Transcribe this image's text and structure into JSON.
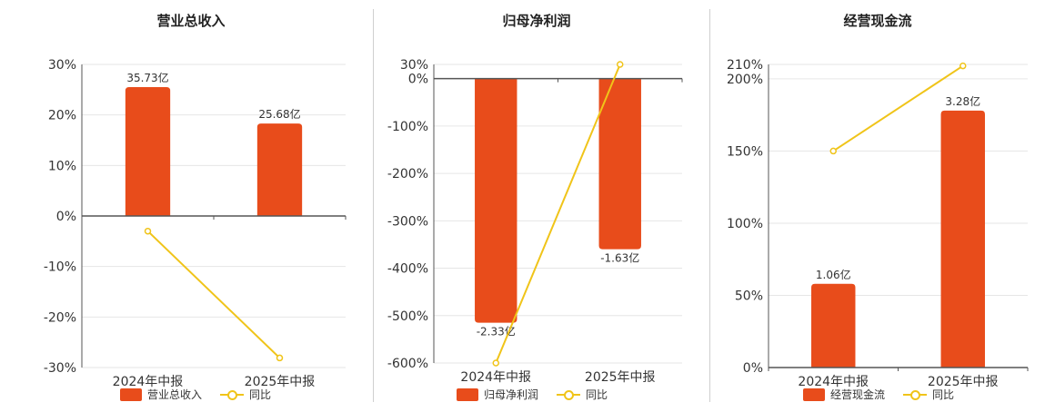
{
  "colors": {
    "bar": "#e84c1b",
    "line": "#f0c419",
    "grid": "#e6e6e6",
    "axis": "#555555"
  },
  "chart_data": [
    {
      "type": "bar",
      "title": "营业总收入",
      "categories": [
        "2024年中报",
        "2025年中报"
      ],
      "bar_series": {
        "name": "营业总收入",
        "values": [
          25.5,
          18.3
        ],
        "labels": [
          "35.73亿",
          "25.68亿"
        ]
      },
      "line_series": {
        "name": "同比",
        "values": [
          -3,
          -28.1
        ]
      },
      "ylim": [
        -30,
        30
      ],
      "yticks": [
        30,
        20,
        10,
        0,
        -10,
        -20,
        -30
      ],
      "ytick_labels": [
        "30%",
        "20%",
        "10%",
        "0%",
        "-10%",
        "-20%",
        "-30%"
      ],
      "grid": true,
      "legend": "bottom"
    },
    {
      "type": "bar",
      "title": "归母净利润",
      "categories": [
        "2024年中报",
        "2025年中报"
      ],
      "bar_series": {
        "name": "归母净利润",
        "values": [
          -515,
          -360
        ],
        "labels": [
          "-2.33亿",
          "-1.63亿"
        ]
      },
      "line_series": {
        "name": "同比",
        "values": [
          -600,
          30
        ]
      },
      "ylim": [
        -600,
        30
      ],
      "yticks": [
        30,
        0,
        -100,
        -200,
        -300,
        -400,
        -500,
        -600
      ],
      "ytick_labels": [
        "30%",
        "0%",
        "-100%",
        "-200%",
        "-300%",
        "-400%",
        "-500%",
        "-600%"
      ],
      "grid": true,
      "legend": "bottom"
    },
    {
      "type": "bar",
      "title": "经营现金流",
      "categories": [
        "2024年中报",
        "2025年中报"
      ],
      "bar_series": {
        "name": "经营现金流",
        "values": [
          58,
          178
        ],
        "labels": [
          "1.06亿",
          "3.28亿"
        ]
      },
      "line_series": {
        "name": "同比",
        "values": [
          150,
          209
        ]
      },
      "ylim": [
        0,
        210
      ],
      "yticks": [
        210,
        200,
        150,
        100,
        50,
        0
      ],
      "ytick_labels": [
        "210%",
        "200%",
        "150%",
        "100%",
        "50%",
        "0%"
      ],
      "grid": true,
      "legend": "bottom"
    }
  ]
}
